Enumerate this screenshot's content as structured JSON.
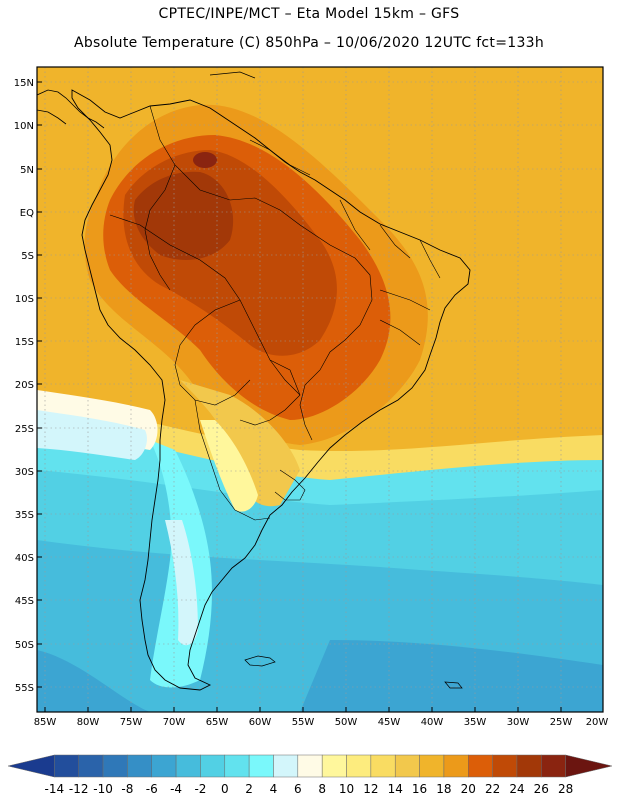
{
  "title_line1": "CPTEC/INPE/MCT –  Eta Model 15km – GFS",
  "title_line2": "Absolute Temperature (C) 850hPa – 10/06/2020 12UTC fct=133h",
  "map": {
    "lat_range": [
      -58,
      16
    ],
    "lon_range": [
      -86,
      -20
    ],
    "lat_labels": [
      "15N",
      "10N",
      "5N",
      "EQ",
      "5S",
      "10S",
      "15S",
      "20S",
      "25S",
      "30S",
      "35S",
      "40S",
      "45S",
      "50S",
      "55S"
    ],
    "lon_labels": [
      "85W",
      "80W",
      "75W",
      "70W",
      "65W",
      "60W",
      "55W",
      "50W",
      "45W",
      "40W",
      "35W",
      "30W",
      "25W",
      "20W"
    ]
  },
  "colorbar": {
    "labels": [
      "-14",
      "-12",
      "-10",
      "-8",
      "-6",
      "-4",
      "-2",
      "0",
      "2",
      "4",
      "6",
      "8",
      "10",
      "12",
      "14",
      "16",
      "18",
      "20",
      "22",
      "24",
      "26",
      "28"
    ],
    "colors": [
      "#1a3b8f",
      "#224e9c",
      "#2a63aa",
      "#2f78b8",
      "#358fc6",
      "#3ca5d2",
      "#46bcdc",
      "#52d0e4",
      "#62e2ee",
      "#7af8fb",
      "#d3f6fb",
      "#fffbe6",
      "#fff79c",
      "#fdec7e",
      "#f9dc62",
      "#f2c84c",
      "#f0b42b",
      "#ec9a1a",
      "#dc5e08",
      "#c04a06",
      "#a23808",
      "#8a2410",
      "#6b1510"
    ]
  }
}
